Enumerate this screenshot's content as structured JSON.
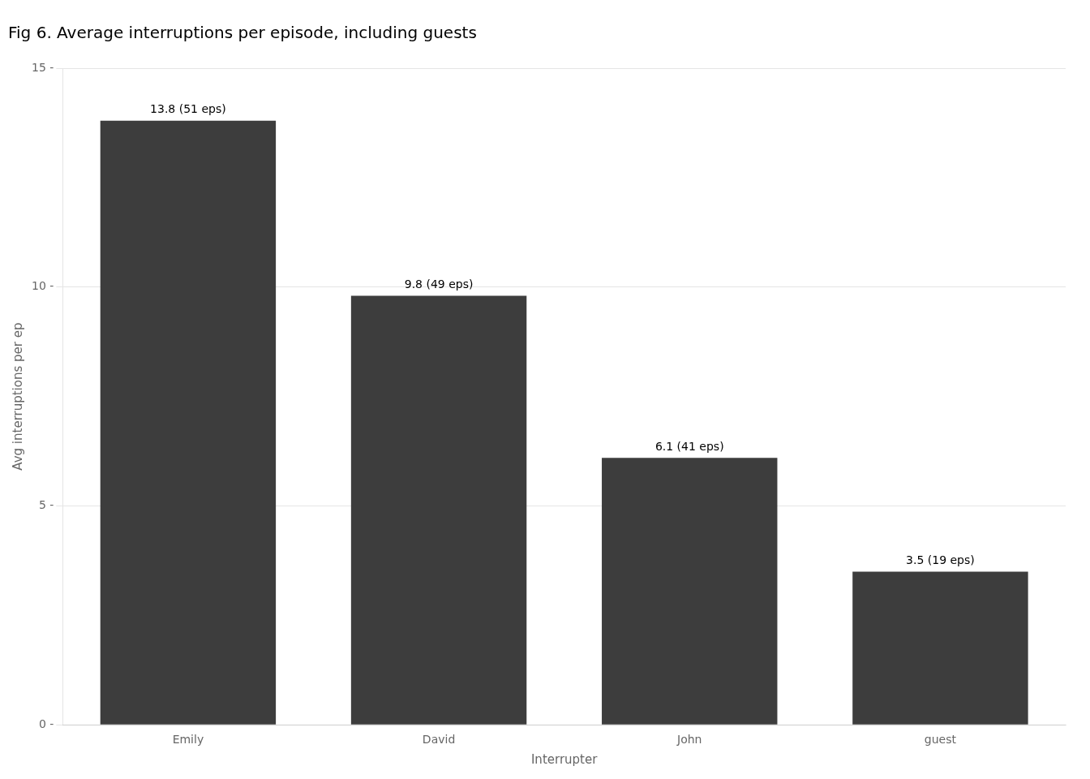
{
  "chart_data": {
    "type": "bar",
    "title": "Fig 6. Average interruptions per episode, including guests",
    "categories": [
      "Emily",
      "David",
      "John",
      "guest"
    ],
    "values": [
      13.8,
      9.8,
      6.1,
      3.5
    ],
    "value_labels": [
      "13.8 (51 eps)",
      "9.8 (49 eps)",
      "6.1 (41 eps)",
      "3.5 (19 eps)"
    ],
    "data_labels": true,
    "color": "#3d3d3d",
    "xlabel": "Interrupter",
    "ylabel": "Avg interruptions per ep",
    "ylim": [
      0,
      15
    ],
    "yticks": [
      {
        "value": 0,
        "label": "0 -"
      },
      {
        "value": 5,
        "label": "5 -"
      },
      {
        "value": 10,
        "label": "10 -"
      },
      {
        "value": 15,
        "label": "15 -"
      }
    ],
    "grid": true
  }
}
